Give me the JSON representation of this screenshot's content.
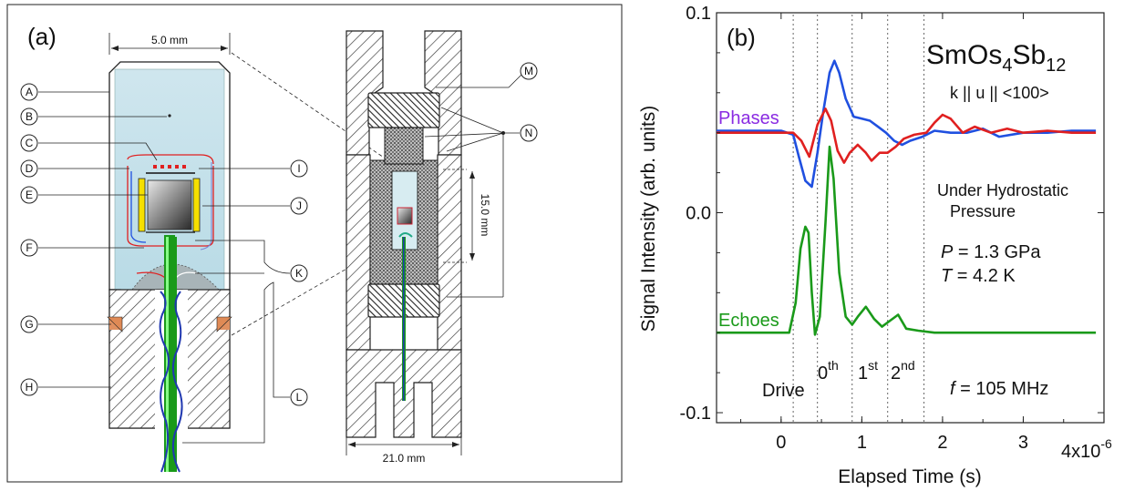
{
  "panel_a": {
    "label": "(a)",
    "dims": {
      "top": "5.0 mm",
      "bottom": "21.0 mm",
      "side": "15.0 mm"
    },
    "parts_left": [
      "A",
      "B",
      "C",
      "D",
      "E",
      "F",
      "G",
      "H"
    ],
    "parts_right": [
      "I",
      "J",
      "K",
      "L"
    ],
    "parts_cell": [
      "M",
      "N"
    ]
  },
  "panel_b": {
    "label": "(b)",
    "compound": {
      "base": "SmOs",
      "sub1": "4",
      "mid": "Sb",
      "sub2": "12"
    },
    "orientation": "k || u || <100>",
    "phases_label": "Phases",
    "echoes_label": "Echoes",
    "condition_1": "Under Hydrostatic",
    "condition_2": "Pressure",
    "pressure": {
      "var": "P",
      "rest": " = 1.3 GPa"
    },
    "temperature": {
      "var": "T",
      "rest": " = 4.2 K"
    },
    "frequency": {
      "var": "f",
      "rest": " = 105 MHz"
    },
    "pulse_labels": {
      "drive": "Drive",
      "zero": "0",
      "zero_sup": "th",
      "first": "1",
      "first_sup": "st",
      "second": "2",
      "second_sup": "nd"
    },
    "scale_label": {
      "base": "4x10",
      "exp": "-6"
    }
  },
  "chart_data": {
    "type": "line",
    "xlabel": "Elapsed Time (s)",
    "ylabel": "Signal Intensity (arb. units)",
    "xlim": [
      -8e-07,
      4e-06
    ],
    "ylim": [
      -0.105,
      0.1
    ],
    "x_ticks": [
      0,
      1e-06,
      2e-06,
      3e-06,
      4e-06
    ],
    "x_tick_labels": [
      "0",
      "1",
      "2",
      "3",
      ""
    ],
    "y_ticks": [
      -0.1,
      0.0,
      0.1
    ],
    "y_tick_labels": [
      "-0.1",
      "0.0",
      "0.1"
    ],
    "grid": false,
    "vlines": [
      1.5e-07,
      4.5e-07,
      8.8e-07,
      1.32e-06,
      1.77e-06
    ],
    "colors": {
      "blue": "#2050e0",
      "red": "#e02020",
      "green": "#1a9a1a",
      "phases_label": "#8a2be2",
      "echoes_label": "#1a9a1a"
    },
    "series": [
      {
        "color": "blue",
        "x": [
          -8e-07,
          -5e-07,
          -2e-07,
          0.0,
          1.5e-07,
          2.2e-07,
          3e-07,
          3.8e-07,
          4.5e-07,
          5.2e-07,
          6e-07,
          6.6e-07,
          7.2e-07,
          8e-07,
          9e-07,
          1e-06,
          1.1e-06,
          1.2e-06,
          1.3e-06,
          1.4e-06,
          1.5e-06,
          1.6e-06,
          1.75e-06,
          1.9e-06,
          2.1e-06,
          2.3e-06,
          2.5e-06,
          2.7e-06,
          3e-06,
          3.3e-06,
          3.6e-06,
          3.9e-06
        ],
        "values": [
          0.041,
          0.041,
          0.041,
          0.041,
          0.039,
          0.028,
          0.016,
          0.013,
          0.03,
          0.05,
          0.07,
          0.076,
          0.07,
          0.057,
          0.048,
          0.047,
          0.046,
          0.043,
          0.04,
          0.036,
          0.034,
          0.036,
          0.038,
          0.041,
          0.04,
          0.04,
          0.042,
          0.038,
          0.04,
          0.04,
          0.041,
          0.041
        ]
      },
      {
        "color": "red",
        "x": [
          -8e-07,
          -5e-07,
          -2e-07,
          0.0,
          1.5e-07,
          2.5e-07,
          3.5e-07,
          4.5e-07,
          5.5e-07,
          6.2e-07,
          7e-07,
          7.8e-07,
          8.5e-07,
          9.5e-07,
          1.05e-06,
          1.12e-06,
          1.22e-06,
          1.32e-06,
          1.42e-06,
          1.52e-06,
          1.65e-06,
          1.8e-06,
          1.9e-06,
          2e-06,
          2.1e-06,
          2.25e-06,
          2.4e-06,
          2.6e-06,
          2.8e-06,
          3e-06,
          3.3e-06,
          3.6e-06,
          3.9e-06
        ],
        "values": [
          0.04,
          0.04,
          0.04,
          0.04,
          0.04,
          0.036,
          0.028,
          0.044,
          0.052,
          0.046,
          0.031,
          0.025,
          0.03,
          0.034,
          0.03,
          0.026,
          0.03,
          0.03,
          0.033,
          0.037,
          0.039,
          0.04,
          0.045,
          0.049,
          0.047,
          0.04,
          0.043,
          0.04,
          0.042,
          0.04,
          0.041,
          0.04,
          0.04
        ]
      },
      {
        "color": "green",
        "x": [
          -8e-07,
          -5e-07,
          -2e-07,
          0.0,
          1e-07,
          1.8e-07,
          2.4e-07,
          3e-07,
          3.4e-07,
          3.8e-07,
          4.2e-07,
          4.8e-07,
          5.5e-07,
          6e-07,
          6.5e-07,
          7.2e-07,
          8e-07,
          8.8e-07,
          9.5e-07,
          1.05e-06,
          1.15e-06,
          1.25e-06,
          1.35e-06,
          1.45e-06,
          1.55e-06,
          1.7e-06,
          1.9e-06,
          2.2e-06,
          2.6e-06,
          3e-06,
          3.4e-06,
          3.9e-06
        ],
        "values": [
          -0.06,
          -0.06,
          -0.06,
          -0.06,
          -0.06,
          -0.045,
          -0.018,
          -0.007,
          -0.01,
          -0.04,
          -0.061,
          -0.052,
          -0.005,
          0.033,
          0.017,
          -0.03,
          -0.052,
          -0.056,
          -0.052,
          -0.047,
          -0.053,
          -0.057,
          -0.054,
          -0.051,
          -0.058,
          -0.059,
          -0.06,
          -0.06,
          -0.06,
          -0.06,
          -0.06,
          -0.06
        ]
      }
    ]
  }
}
